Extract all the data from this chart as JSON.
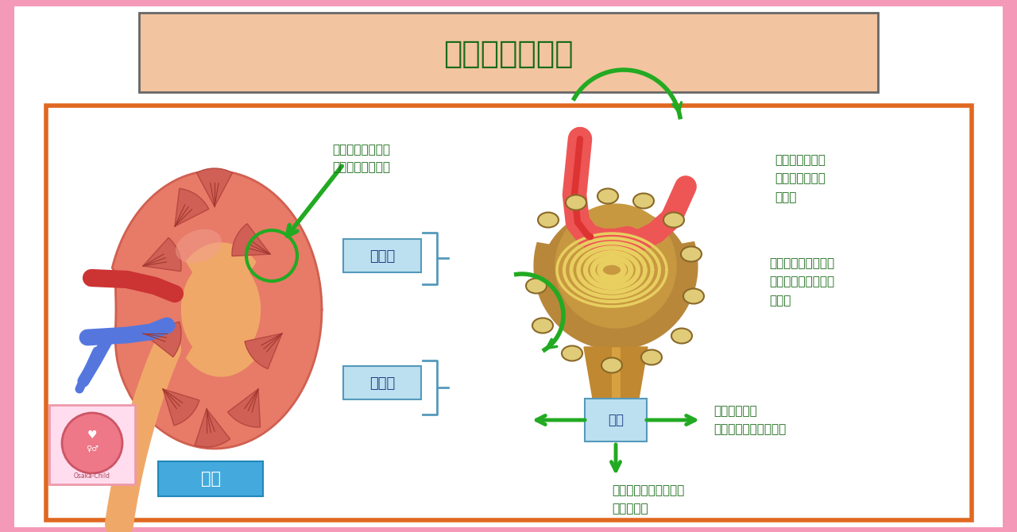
{
  "bg_outer": "#F599B8",
  "bg_white": "#FFFFFF",
  "title_box_bg": "#F2C4A0",
  "title_box_border": "#666666",
  "title_text": "腎臓のはたらき",
  "title_color": "#1a6b1a",
  "main_box_border": "#E06820",
  "main_box_bg": "#FFFFFF",
  "green": "#22AA22",
  "dark_green": "#1a6b1a",
  "label_box_bg": "#bce0f0",
  "label_box_border": "#5599bb",
  "label_glomerulus": "糸球体",
  "label_tubule": "尿細管",
  "label_kidney": "腎臓",
  "label_gennyo": "原尿",
  "text_blood_arrives": "老廃物をふくんだ\n血液が腎臓に到達",
  "text_clean_blood": "きれいになった\n血球が体の中に\nもどる",
  "text_filtration": "老廃物や有害物質・\n余分な水などがろ過\nされる",
  "text_reabsorption": "必要なものが\n体の中に再吸収される",
  "text_excretion": "不要なものが尿として\n排泄される"
}
